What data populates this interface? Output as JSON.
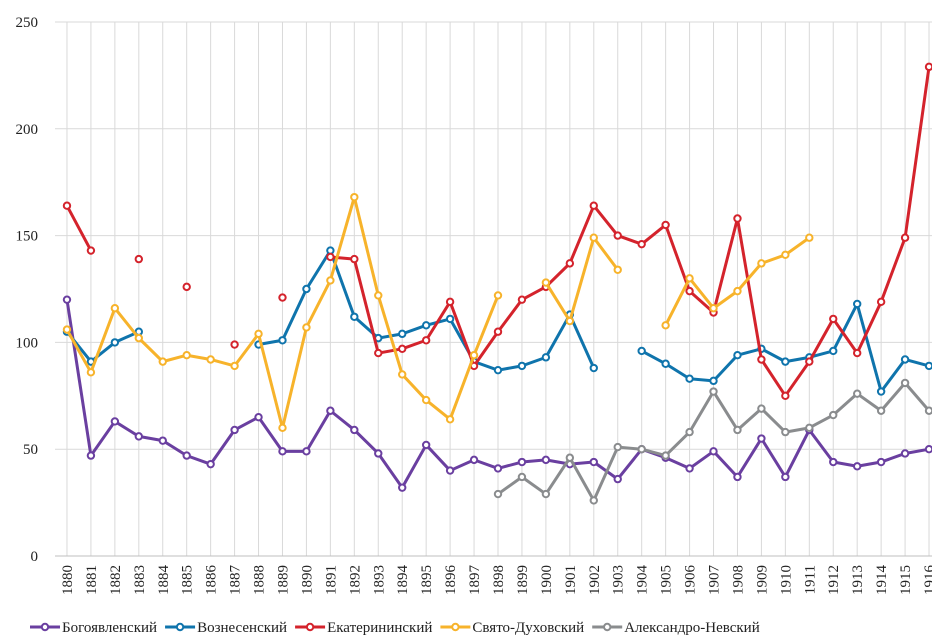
{
  "chart_data": {
    "type": "line",
    "categories": [
      "1880",
      "1881",
      "1882",
      "1883",
      "1884",
      "1885",
      "1886",
      "1887",
      "1888",
      "1889",
      "1890",
      "1891",
      "1892",
      "1893",
      "1894",
      "1895",
      "1896",
      "1897",
      "1898",
      "1899",
      "1900",
      "1901",
      "1902",
      "1903",
      "1904",
      "1905",
      "1906",
      "1907",
      "1908",
      "1909",
      "1910",
      "1911",
      "1912",
      "1913",
      "1914",
      "1915",
      "1916"
    ],
    "ylim": [
      0,
      250
    ],
    "yticks": [
      0,
      50,
      100,
      150,
      200,
      250
    ],
    "grid": true,
    "legend": "bottom",
    "series": [
      {
        "name": "Богоявленский",
        "color": "#6a3fa0",
        "values": [
          120,
          47,
          63,
          56,
          54,
          47,
          43,
          59,
          65,
          49,
          49,
          68,
          59,
          48,
          32,
          52,
          40,
          45,
          41,
          44,
          45,
          43,
          44,
          36,
          50,
          46,
          41,
          49,
          37,
          55,
          37,
          59,
          44,
          42,
          44,
          48,
          50
        ]
      },
      {
        "name": "Вознесенский",
        "color": "#0f74ac",
        "values": [
          105,
          91,
          100,
          105,
          null,
          null,
          null,
          null,
          99,
          101,
          125,
          143,
          112,
          102,
          104,
          108,
          111,
          91,
          87,
          89,
          93,
          113,
          88,
          null,
          96,
          90,
          83,
          82,
          94,
          97,
          91,
          93,
          96,
          118,
          77,
          92,
          89
        ]
      },
      {
        "name": "Екатерининский",
        "color": "#d4232c",
        "values": [
          164,
          143,
          null,
          139,
          null,
          126,
          null,
          99,
          null,
          121,
          null,
          140,
          139,
          95,
          97,
          101,
          119,
          89,
          105,
          120,
          126,
          137,
          164,
          150,
          146,
          155,
          124,
          114,
          158,
          92,
          75,
          91,
          111,
          95,
          119,
          149,
          229
        ]
      },
      {
        "name": "Свято-Духовский",
        "color": "#f7b32b",
        "values": [
          106,
          86,
          116,
          102,
          91,
          94,
          92,
          89,
          104,
          60,
          107,
          129,
          168,
          122,
          85,
          73,
          64,
          94,
          122,
          null,
          128,
          110,
          149,
          134,
          null,
          108,
          130,
          116,
          124,
          137,
          141,
          149,
          null,
          null,
          null,
          null,
          null
        ]
      },
      {
        "name": "Александро-Невский",
        "color": "#8a8c8e",
        "values": [
          null,
          null,
          null,
          null,
          null,
          null,
          null,
          null,
          null,
          null,
          null,
          null,
          null,
          null,
          null,
          null,
          null,
          null,
          29,
          37,
          29,
          46,
          26,
          51,
          50,
          47,
          58,
          77,
          59,
          69,
          58,
          60,
          66,
          76,
          68,
          81,
          68
        ]
      }
    ]
  }
}
